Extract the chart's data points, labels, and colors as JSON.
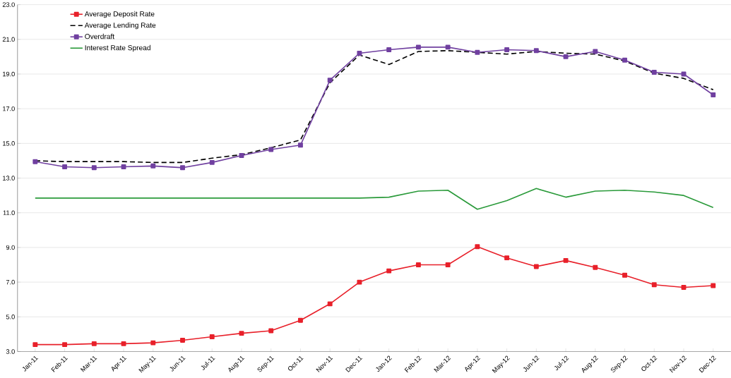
{
  "chart_data": {
    "type": "line",
    "categories": [
      "Jan-11",
      "Feb-11",
      "Mar-11",
      "Apr-11",
      "May-11",
      "Jun-11",
      "Jul-11",
      "Aug-11",
      "Sep-11",
      "Oct-11",
      "Nov-11",
      "Dec-11",
      "Jan-12",
      "Feb-12",
      "Mar-12",
      "Apr-12",
      "May-12",
      "Jun-12",
      "Jul-12",
      "Aug-12",
      "Sep-12",
      "Oct-12",
      "Nov-12",
      "Dec-12"
    ],
    "series": [
      {
        "name": "Average Deposit Rate",
        "color": "#e8202a",
        "marker": "square",
        "line_style": "solid",
        "values": [
          3.4,
          3.4,
          3.45,
          3.45,
          3.5,
          3.65,
          3.85,
          4.05,
          4.2,
          4.8,
          5.75,
          7.0,
          7.65,
          8.0,
          8.0,
          9.05,
          8.4,
          7.9,
          8.25,
          7.85,
          7.4,
          6.85,
          6.7,
          6.8
        ]
      },
      {
        "name": "Average Lending Rate",
        "color": "#000000",
        "marker": "none",
        "line_style": "dashed",
        "values": [
          14.0,
          13.95,
          13.95,
          13.95,
          13.9,
          13.9,
          14.15,
          14.35,
          14.75,
          15.2,
          18.5,
          20.1,
          19.55,
          20.3,
          20.35,
          20.25,
          20.15,
          20.3,
          20.2,
          20.15,
          19.75,
          19.05,
          18.75,
          18.1
        ]
      },
      {
        "name": "Overdraft",
        "color": "#7040a0",
        "marker": "square",
        "line_style": "solid",
        "values": [
          13.95,
          13.65,
          13.6,
          13.65,
          13.7,
          13.6,
          13.9,
          14.3,
          14.65,
          14.9,
          18.65,
          20.2,
          20.4,
          20.55,
          20.55,
          20.25,
          20.4,
          20.35,
          20.0,
          20.3,
          19.8,
          19.1,
          19.0,
          17.8
        ]
      },
      {
        "name": "Interest Rate Spread",
        "color": "#2a9a3a",
        "marker": "none",
        "line_style": "solid",
        "values": [
          11.85,
          11.85,
          11.85,
          11.85,
          11.85,
          11.85,
          11.85,
          11.85,
          11.85,
          11.85,
          11.85,
          11.85,
          11.9,
          12.25,
          12.3,
          11.2,
          11.7,
          12.4,
          11.9,
          12.25,
          12.3,
          12.2,
          12.0,
          11.3
        ]
      }
    ],
    "ylim": [
      3,
      23
    ],
    "yticks": [
      {
        "value": 3,
        "label": "3.0"
      },
      {
        "value": 5,
        "label": "5.0"
      },
      {
        "value": 7,
        "label": "7.0"
      },
      {
        "value": 9,
        "label": "9.0"
      },
      {
        "value": 11,
        "label": "11.0"
      },
      {
        "value": 13,
        "label": "13.0"
      },
      {
        "value": 15,
        "label": "15.0"
      },
      {
        "value": 17,
        "label": "17.0"
      },
      {
        "value": 19,
        "label": "19.0"
      },
      {
        "value": 21,
        "label": "21.0"
      },
      {
        "value": 23,
        "label": "23.0"
      }
    ],
    "grid": "y",
    "legend": "top left"
  }
}
